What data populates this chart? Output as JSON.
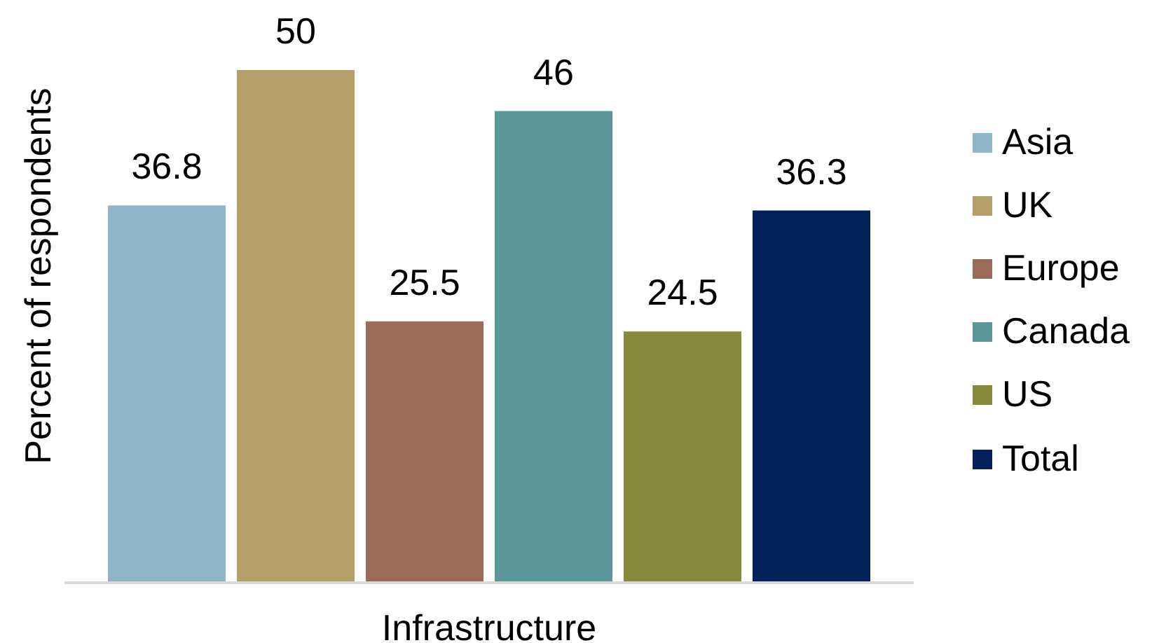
{
  "chart_data": {
    "type": "bar",
    "categories": [
      null
    ],
    "xlabel": "Infrastructure",
    "ylabel": "Percent of respondents",
    "series": [
      {
        "name": "Asia",
        "color": "#8fb6c8",
        "values": [
          36.8
        ]
      },
      {
        "name": "UK",
        "color": "#b59f68",
        "values": [
          50
        ]
      },
      {
        "name": "Europe",
        "color": "#9b6b5a",
        "values": [
          25.5
        ]
      },
      {
        "name": "Canada",
        "color": "#5b9799",
        "values": [
          46
        ]
      },
      {
        "name": "US",
        "color": "#878a3c",
        "values": [
          24.5
        ]
      },
      {
        "name": "Total",
        "color": "#022059",
        "values": [
          36.3
        ]
      }
    ],
    "data_labels": true,
    "legend": "right",
    "tick_labels": false
  }
}
